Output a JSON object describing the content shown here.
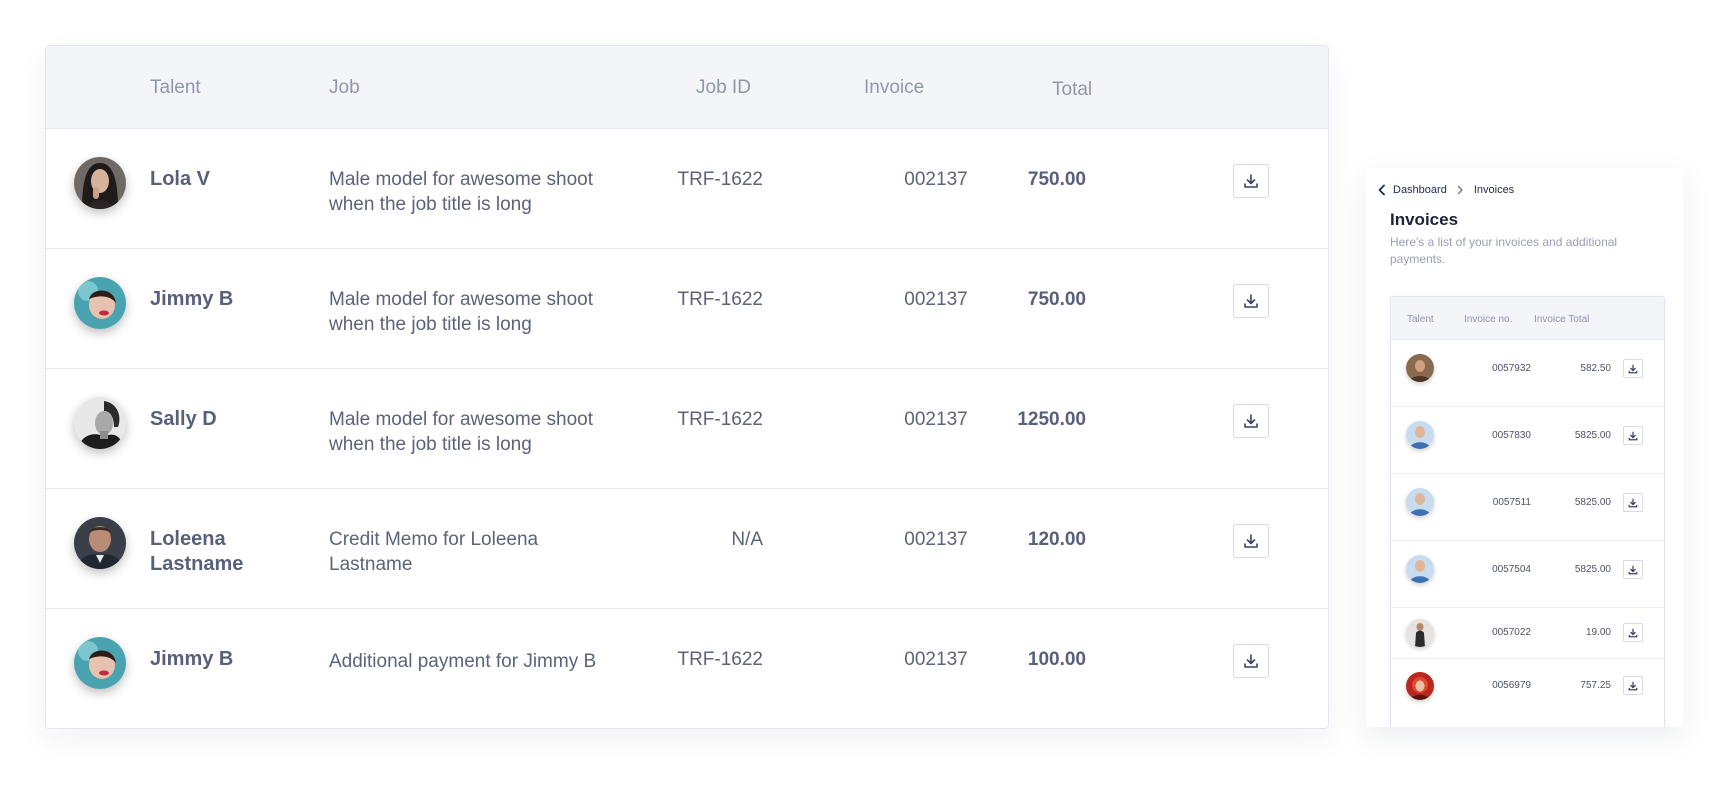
{
  "main_table": {
    "headers": {
      "talent": "Talent",
      "job": "Job",
      "job_id": "Job ID",
      "invoice": "Invoice",
      "total": "Total"
    },
    "rows": [
      {
        "talent": "Lola V",
        "job": "Male model for awesome shoot when the job title is long",
        "job_id": "TRF-1622",
        "invoice": "002137",
        "total": "750.00",
        "avatar": "avatar-woman-dark-hair"
      },
      {
        "talent": "Jimmy B",
        "job": "Male model for awesome shoot when the job title is long",
        "job_id": "TRF-1622",
        "invoice": "002137",
        "total": "750.00",
        "avatar": "avatar-woman-red-lips"
      },
      {
        "talent": "Sally D",
        "job": "Male model for awesome shoot when the job title is long",
        "job_id": "TRF-1622",
        "invoice": "002137",
        "total": "1250.00",
        "avatar": "avatar-man-bw"
      },
      {
        "talent": "Loleena Lastname",
        "job": "Credit Memo for Loleena Lastname",
        "job_id": "N/A",
        "invoice": "002137",
        "total": "120.00",
        "avatar": "avatar-man-suit"
      },
      {
        "talent": "Jimmy B",
        "job": "Additional payment for Jimmy B",
        "job_id": "TRF-1622",
        "invoice": "002137",
        "total": "100.00",
        "avatar": "avatar-woman-red-lips"
      }
    ]
  },
  "mobile": {
    "breadcrumb": {
      "parent": "Dashboard",
      "current": "Invoices"
    },
    "title": "Invoices",
    "subtitle": "Here's a list of your invoices and additional payments.",
    "headers": {
      "talent": "Talent",
      "invoice_no": "Invoice no.",
      "invoice_total": "Invoice Total"
    },
    "rows": [
      {
        "invoice_no": "0057932",
        "total": "582.50",
        "avatar": "avatar-woman-brown"
      },
      {
        "invoice_no": "0057830",
        "total": "5825.00",
        "avatar": "avatar-man-blue"
      },
      {
        "invoice_no": "0057511",
        "total": "5825.00",
        "avatar": "avatar-man-blue"
      },
      {
        "invoice_no": "0057504",
        "total": "5825.00",
        "avatar": "avatar-man-blue"
      },
      {
        "invoice_no": "0057022",
        "total": "19.00",
        "avatar": "avatar-person-standing"
      },
      {
        "invoice_no": "0056979",
        "total": "757.25",
        "avatar": "avatar-woman-red-hair"
      }
    ]
  },
  "colors": {
    "header_bg": "#f4f5f9",
    "text": "#5d6379",
    "header_text": "#9097ab",
    "accent_dark": "#1f2a55"
  }
}
